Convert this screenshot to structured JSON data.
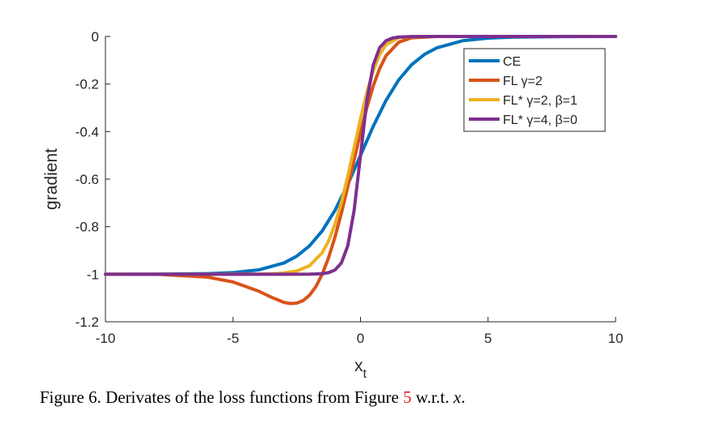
{
  "caption": {
    "prefix": "Figure 6. Derivates of the loss functions from Figure ",
    "ref": "5",
    "suffix": " w.r.t. ",
    "variable": "x",
    "end": "."
  },
  "chart_data": {
    "type": "line",
    "xlabel": "x",
    "xlabel_subscript": "t",
    "ylabel": "gradient",
    "xlim": [
      -10,
      10
    ],
    "ylim": [
      -1.2,
      0
    ],
    "xticks": [
      -10,
      -5,
      0,
      5,
      10
    ],
    "xtick_labels": [
      "-10",
      "-5",
      "0",
      "5",
      "10"
    ],
    "yticks": [
      0,
      -0.2,
      -0.4,
      -0.6,
      -0.8,
      -1,
      -1.2
    ],
    "ytick_labels": [
      "0",
      "-0.2",
      "-0.4",
      "-0.6",
      "-0.8",
      "-1",
      "-1.2"
    ],
    "grid": false,
    "legend_position": "top-right",
    "series": [
      {
        "name": "CE",
        "color": "#0072bd",
        "x": [
          -10,
          -8,
          -6,
          -5,
          -4,
          -3,
          -2.5,
          -2,
          -1.5,
          -1,
          -0.5,
          0,
          0.5,
          1,
          1.5,
          2,
          2.5,
          3,
          4,
          5,
          6,
          8,
          10
        ],
        "y": [
          -1.0,
          -0.9997,
          -0.9975,
          -0.9933,
          -0.982,
          -0.9526,
          -0.9241,
          -0.8808,
          -0.8176,
          -0.7311,
          -0.6225,
          -0.5,
          -0.3775,
          -0.2689,
          -0.1824,
          -0.1192,
          -0.0759,
          -0.0474,
          -0.018,
          -0.0067,
          -0.0025,
          -0.0003,
          0.0
        ]
      },
      {
        "name": "FL γ=2",
        "color": "#d95319",
        "x": [
          -10,
          -8,
          -6,
          -5,
          -4,
          -3.5,
          -3,
          -2.75,
          -2.5,
          -2.25,
          -2,
          -1.75,
          -1.5,
          -1.25,
          -1,
          -0.75,
          -0.5,
          -0.25,
          0,
          0.25,
          0.5,
          0.75,
          1,
          1.5,
          2,
          3,
          5,
          10
        ],
        "y": [
          -1.0,
          -1.0003,
          -1.0124,
          -1.0326,
          -1.0709,
          -1.0966,
          -1.1187,
          -1.1233,
          -1.1216,
          -1.1109,
          -1.0886,
          -1.0521,
          -0.9995,
          -0.9298,
          -0.8435,
          -0.7431,
          -0.6327,
          -0.5182,
          -0.4047,
          -0.2993,
          -0.2078,
          -0.1349,
          -0.0811,
          -0.0241,
          -0.0055,
          -0.0002,
          0.0,
          0.0
        ]
      },
      {
        "name": "FL* γ=2, β=1",
        "color": "#edb120",
        "x": [
          -10,
          -6,
          -4,
          -3.5,
          -3,
          -2.5,
          -2,
          -1.5,
          -1.25,
          -1,
          -0.75,
          -0.5,
          -0.25,
          0,
          0.25,
          0.5,
          0.75,
          1,
          1.5,
          2,
          3,
          5,
          10
        ],
        "y": [
          -1.0,
          -1.0,
          -0.9993,
          -0.9982,
          -0.9951,
          -0.9866,
          -0.9643,
          -0.9093,
          -0.8598,
          -0.7896,
          -0.6981,
          -0.5885,
          -0.4679,
          -0.3466,
          -0.2351,
          -0.1433,
          -0.0766,
          -0.0348,
          -0.0048,
          -0.0005,
          0.0,
          0.0,
          0.0
        ]
      },
      {
        "name": "FL* γ=4, β=0",
        "color": "#7e2f8e",
        "x": [
          -10,
          -3,
          -2,
          -1.75,
          -1.5,
          -1.25,
          -1,
          -0.75,
          -0.5,
          -0.25,
          0,
          0.25,
          0.5,
          0.75,
          1,
          1.25,
          1.5,
          2,
          3,
          10
        ],
        "y": [
          -1.0,
          -1.0,
          -0.9997,
          -0.999,
          -0.9975,
          -0.9933,
          -0.982,
          -0.9526,
          -0.8808,
          -0.7311,
          -0.5,
          -0.2689,
          -0.1192,
          -0.0474,
          -0.018,
          -0.0067,
          -0.0025,
          -0.0003,
          0.0,
          0.0
        ]
      }
    ]
  }
}
